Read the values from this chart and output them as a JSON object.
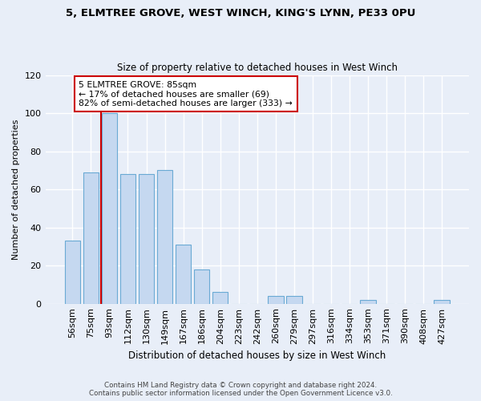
{
  "title_line1": "5, ELMTREE GROVE, WEST WINCH, KING'S LYNN, PE33 0PU",
  "title_line2": "Size of property relative to detached houses in West Winch",
  "xlabel": "Distribution of detached houses by size in West Winch",
  "ylabel": "Number of detached properties",
  "bar_labels": [
    "56sqm",
    "75sqm",
    "93sqm",
    "112sqm",
    "130sqm",
    "149sqm",
    "167sqm",
    "186sqm",
    "204sqm",
    "223sqm",
    "242sqm",
    "260sqm",
    "279sqm",
    "297sqm",
    "316sqm",
    "334sqm",
    "353sqm",
    "371sqm",
    "390sqm",
    "408sqm",
    "427sqm"
  ],
  "bar_values": [
    33,
    69,
    100,
    68,
    68,
    70,
    31,
    18,
    6,
    0,
    0,
    4,
    4,
    0,
    0,
    0,
    2,
    0,
    0,
    0,
    2
  ],
  "bar_color": "#c5d8f0",
  "bar_edge_color": "#6aaad4",
  "bar_linewidth": 0.8,
  "property_size_label": "5 ELMTREE GROVE: 85sqm",
  "pct_smaller": 17,
  "n_smaller": 69,
  "pct_larger_semi": 82,
  "n_larger_semi": 333,
  "vline_color": "#cc0000",
  "vline_x_idx": 1.56,
  "annotation_box_color": "#ffffff",
  "annotation_box_edge": "#cc0000",
  "background_color": "#e8eef8",
  "grid_color": "#ffffff",
  "footer_line1": "Contains HM Land Registry data © Crown copyright and database right 2024.",
  "footer_line2": "Contains public sector information licensed under the Open Government Licence v3.0.",
  "ylim": [
    0,
    120
  ],
  "yticks": [
    0,
    20,
    40,
    60,
    80,
    100,
    120
  ]
}
